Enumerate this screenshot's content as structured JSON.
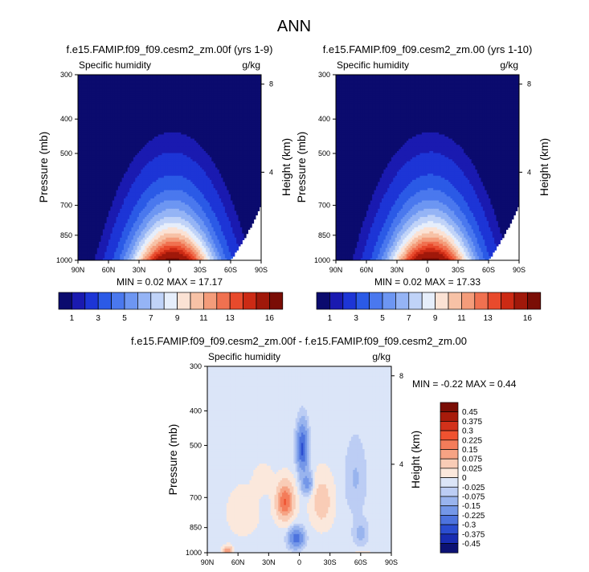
{
  "figure_title": "ANN",
  "chart_data": [
    {
      "type": "heatmap",
      "id": "panel1",
      "title": "f.e15.FAMIP.f09_f09.cesm2_zm.00f (yrs 1-9)",
      "left_label": "Specific humidity",
      "right_label": "g/kg",
      "ylabel": "Pressure (mb)",
      "ylabel_right": "Height (km)",
      "xticks": [
        "90N",
        "60N",
        "30N",
        "0",
        "30S",
        "60S",
        "90S"
      ],
      "yticks": [
        "300",
        "400",
        "500",
        "700",
        "850",
        "1000"
      ],
      "yticks_right": [
        "8",
        "4"
      ],
      "min_text": "MIN =  0.02  MAX = 17.17",
      "field": {
        "peak": 17.17
      },
      "colorbar_labels": [
        "1",
        "3",
        "5",
        "7",
        "9",
        "11",
        "13",
        "16"
      ]
    },
    {
      "type": "heatmap",
      "id": "panel2",
      "title": "f.e15.FAMIP.f09_f09.cesm2_zm.00 (yrs 1-10)",
      "left_label": "Specific humidity",
      "right_label": "g/kg",
      "ylabel": "Pressure (mb)",
      "ylabel_right": "Height (km)",
      "xticks": [
        "90N",
        "60N",
        "30N",
        "0",
        "30S",
        "60S",
        "90S"
      ],
      "yticks": [
        "300",
        "400",
        "500",
        "700",
        "850",
        "1000"
      ],
      "yticks_right": [
        "8",
        "4"
      ],
      "min_text": "MIN =  0.02  MAX = 17.33",
      "field": {
        "peak": 17.33
      },
      "colorbar_labels": [
        "1",
        "3",
        "5",
        "7",
        "9",
        "11",
        "13",
        "16"
      ]
    },
    {
      "type": "heatmap",
      "id": "panel3",
      "title": "f.e15.FAMIP.f09_f09.cesm2_zm.00f - f.e15.FAMIP.f09_f09.cesm2_zm.00",
      "left_label": "Specific humidity",
      "right_label": "g/kg",
      "ylabel": "Pressure (mb)",
      "ylabel_right": "Height (km)",
      "xticks": [
        "90N",
        "60N",
        "30N",
        "0",
        "30S",
        "60S",
        "90S"
      ],
      "yticks": [
        "300",
        "400",
        "500",
        "700",
        "850",
        "1000"
      ],
      "yticks_right": [
        "8",
        "4"
      ],
      "min_text": "MIN = -0.22  MAX =  0.44",
      "colorbar_labels": [
        "0.45",
        "0.375",
        "0.3",
        "0.225",
        "0.15",
        "0.075",
        "0.025",
        "0",
        "-0.025",
        "-0.075",
        "-0.15",
        "-0.225",
        "-0.3",
        "-0.375",
        "-0.45"
      ]
    }
  ],
  "colors": {
    "abs_scale": [
      "#0b0b6e",
      "#1a1ab0",
      "#1d35d6",
      "#2b5ae6",
      "#4a78ee",
      "#6d96f2",
      "#95b4f5",
      "#c0d3f8",
      "#e6eefb",
      "#fbe2d4",
      "#f7c2a6",
      "#f49c7a",
      "#f07150",
      "#e84a2c",
      "#cc2a14",
      "#a0180a",
      "#7a0d05"
    ],
    "diff_scale": [
      "#7a0d05",
      "#a81b0b",
      "#d2311a",
      "#ef5230",
      "#f47c5a",
      "#f6a384",
      "#f9ccb6",
      "#fbe8dc",
      "#dbe5f8",
      "#bccdf4",
      "#99b4ee",
      "#7497e8",
      "#4d73de",
      "#2b4dd0",
      "#182cb2",
      "#0c1274"
    ]
  }
}
